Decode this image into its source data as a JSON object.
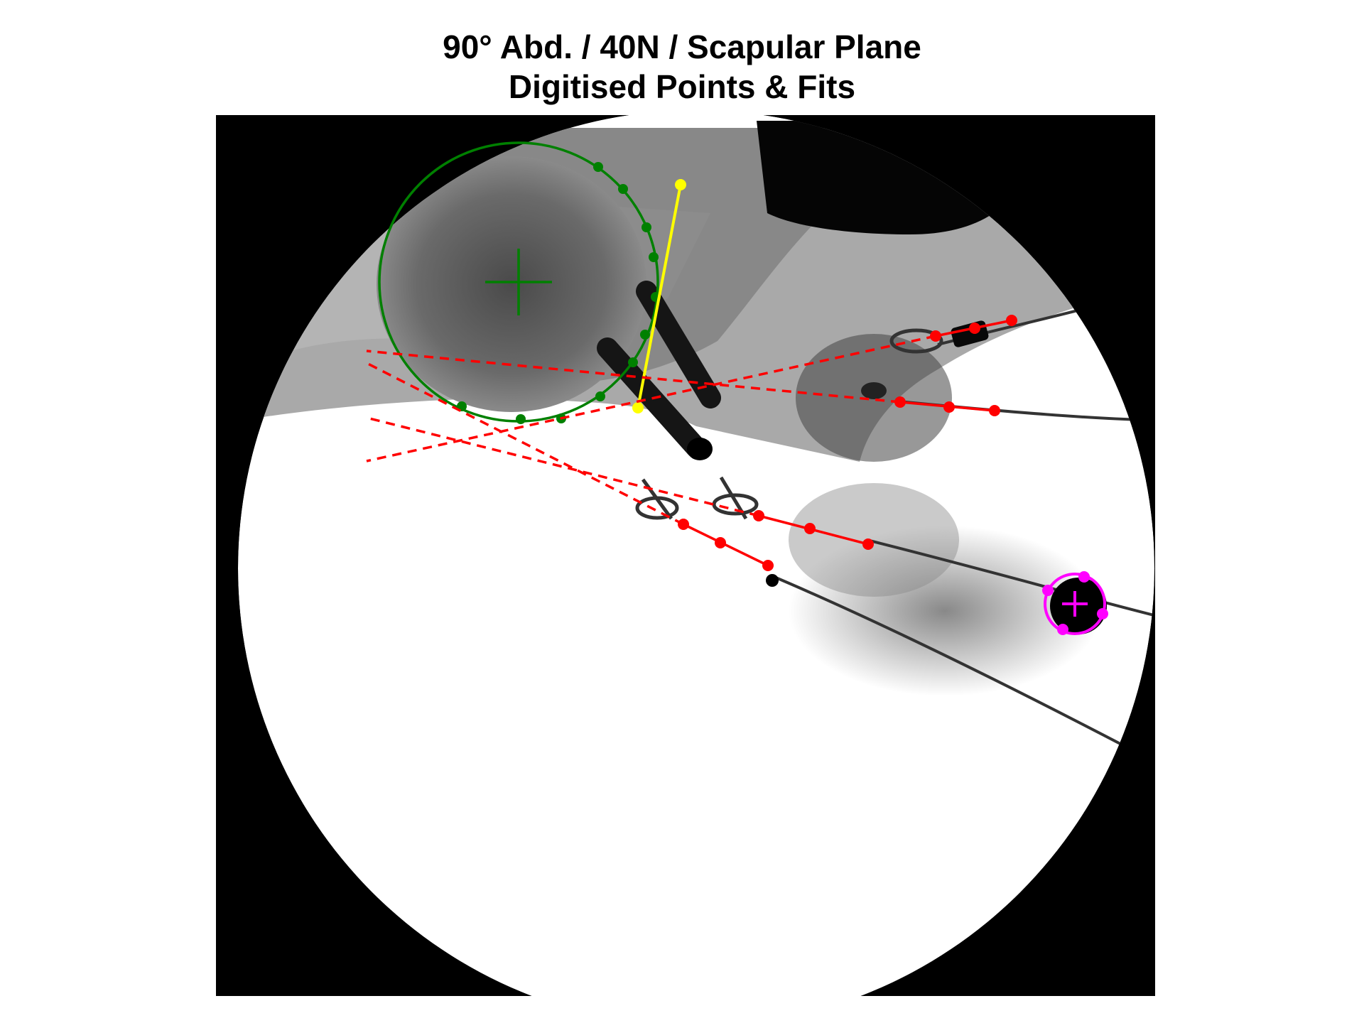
{
  "title": {
    "line1": "90° Abd. / 40N / Scapular Plane",
    "line2": "Digitised Points & Fits"
  },
  "colors": {
    "humeral_head_fit": "#008000",
    "glenoid_line": "#ffff00",
    "wire_fits": "#ff0000",
    "marker_fit": "#ff00ff",
    "background_frame": "#000000",
    "image_field": "#ffffff"
  },
  "overlays": {
    "humeral_head_circle": {
      "center_marker": "cross",
      "points": 12
    },
    "glenoid_segment": {
      "points": 2
    },
    "wire_fits": {
      "count": 4,
      "points_each": 3,
      "extension_style": "dashed"
    },
    "marker_circle": {
      "center_marker": "cross",
      "points": 4
    }
  }
}
